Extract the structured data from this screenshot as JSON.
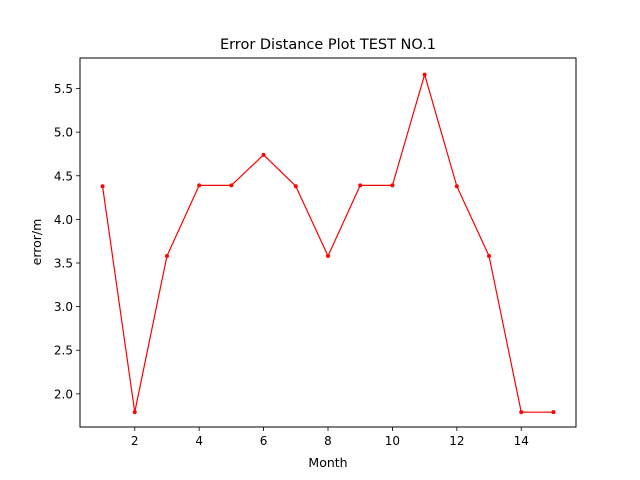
{
  "chart_data": {
    "type": "line",
    "title": "Error Distance Plot TEST NO.1",
    "xlabel": "Month",
    "ylabel": "error/m",
    "xlim": [
      0.3,
      15.7
    ],
    "ylim": [
      1.62,
      5.85
    ],
    "xticks": [
      2,
      4,
      6,
      8,
      10,
      12,
      14
    ],
    "yticks": [
      2.0,
      2.5,
      3.0,
      3.5,
      4.0,
      4.5,
      5.0,
      5.5
    ],
    "grid": false,
    "series": [
      {
        "color": "#ff0000",
        "marker": "dot",
        "x": [
          1,
          2,
          3,
          4,
          5,
          6,
          7,
          8,
          9,
          10,
          11,
          12,
          13,
          14,
          15
        ],
        "values": [
          4.38,
          1.79,
          3.58,
          4.39,
          4.39,
          4.74,
          4.38,
          3.58,
          4.39,
          4.39,
          5.66,
          4.38,
          3.58,
          1.79,
          1.79
        ]
      }
    ]
  }
}
